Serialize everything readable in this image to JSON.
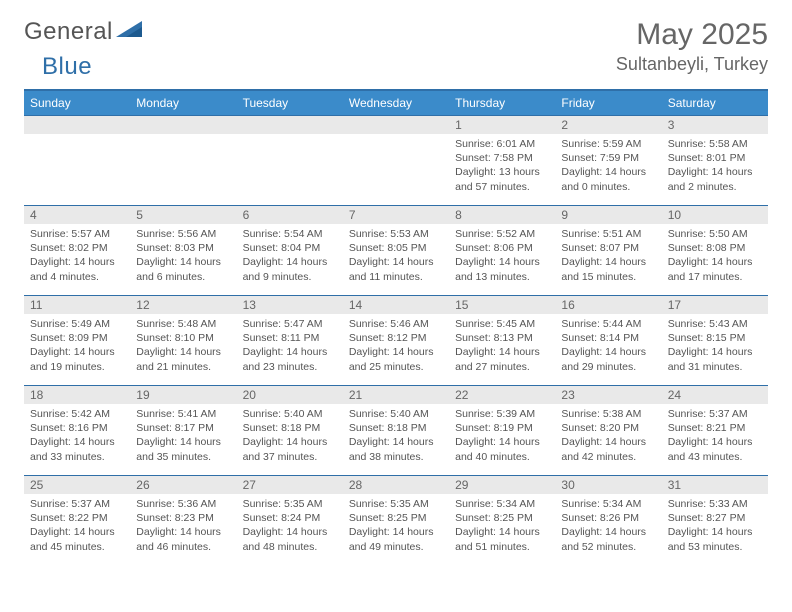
{
  "brand": {
    "text1": "General",
    "text2": "Blue"
  },
  "title": "May 2025",
  "location": "Sultanbeyli, Turkey",
  "colors": {
    "header_bg": "#3b8bca",
    "rule": "#2f6fa8",
    "daynum_bg": "#e9e9e9",
    "text": "#555"
  },
  "weekdays": [
    "Sunday",
    "Monday",
    "Tuesday",
    "Wednesday",
    "Thursday",
    "Friday",
    "Saturday"
  ],
  "weeks": [
    [
      null,
      null,
      null,
      null,
      {
        "n": "1",
        "sr": "6:01 AM",
        "ss": "7:58 PM",
        "dl": "13 hours and 57 minutes."
      },
      {
        "n": "2",
        "sr": "5:59 AM",
        "ss": "7:59 PM",
        "dl": "14 hours and 0 minutes."
      },
      {
        "n": "3",
        "sr": "5:58 AM",
        "ss": "8:01 PM",
        "dl": "14 hours and 2 minutes."
      }
    ],
    [
      {
        "n": "4",
        "sr": "5:57 AM",
        "ss": "8:02 PM",
        "dl": "14 hours and 4 minutes."
      },
      {
        "n": "5",
        "sr": "5:56 AM",
        "ss": "8:03 PM",
        "dl": "14 hours and 6 minutes."
      },
      {
        "n": "6",
        "sr": "5:54 AM",
        "ss": "8:04 PM",
        "dl": "14 hours and 9 minutes."
      },
      {
        "n": "7",
        "sr": "5:53 AM",
        "ss": "8:05 PM",
        "dl": "14 hours and 11 minutes."
      },
      {
        "n": "8",
        "sr": "5:52 AM",
        "ss": "8:06 PM",
        "dl": "14 hours and 13 minutes."
      },
      {
        "n": "9",
        "sr": "5:51 AM",
        "ss": "8:07 PM",
        "dl": "14 hours and 15 minutes."
      },
      {
        "n": "10",
        "sr": "5:50 AM",
        "ss": "8:08 PM",
        "dl": "14 hours and 17 minutes."
      }
    ],
    [
      {
        "n": "11",
        "sr": "5:49 AM",
        "ss": "8:09 PM",
        "dl": "14 hours and 19 minutes."
      },
      {
        "n": "12",
        "sr": "5:48 AM",
        "ss": "8:10 PM",
        "dl": "14 hours and 21 minutes."
      },
      {
        "n": "13",
        "sr": "5:47 AM",
        "ss": "8:11 PM",
        "dl": "14 hours and 23 minutes."
      },
      {
        "n": "14",
        "sr": "5:46 AM",
        "ss": "8:12 PM",
        "dl": "14 hours and 25 minutes."
      },
      {
        "n": "15",
        "sr": "5:45 AM",
        "ss": "8:13 PM",
        "dl": "14 hours and 27 minutes."
      },
      {
        "n": "16",
        "sr": "5:44 AM",
        "ss": "8:14 PM",
        "dl": "14 hours and 29 minutes."
      },
      {
        "n": "17",
        "sr": "5:43 AM",
        "ss": "8:15 PM",
        "dl": "14 hours and 31 minutes."
      }
    ],
    [
      {
        "n": "18",
        "sr": "5:42 AM",
        "ss": "8:16 PM",
        "dl": "14 hours and 33 minutes."
      },
      {
        "n": "19",
        "sr": "5:41 AM",
        "ss": "8:17 PM",
        "dl": "14 hours and 35 minutes."
      },
      {
        "n": "20",
        "sr": "5:40 AM",
        "ss": "8:18 PM",
        "dl": "14 hours and 37 minutes."
      },
      {
        "n": "21",
        "sr": "5:40 AM",
        "ss": "8:18 PM",
        "dl": "14 hours and 38 minutes."
      },
      {
        "n": "22",
        "sr": "5:39 AM",
        "ss": "8:19 PM",
        "dl": "14 hours and 40 minutes."
      },
      {
        "n": "23",
        "sr": "5:38 AM",
        "ss": "8:20 PM",
        "dl": "14 hours and 42 minutes."
      },
      {
        "n": "24",
        "sr": "5:37 AM",
        "ss": "8:21 PM",
        "dl": "14 hours and 43 minutes."
      }
    ],
    [
      {
        "n": "25",
        "sr": "5:37 AM",
        "ss": "8:22 PM",
        "dl": "14 hours and 45 minutes."
      },
      {
        "n": "26",
        "sr": "5:36 AM",
        "ss": "8:23 PM",
        "dl": "14 hours and 46 minutes."
      },
      {
        "n": "27",
        "sr": "5:35 AM",
        "ss": "8:24 PM",
        "dl": "14 hours and 48 minutes."
      },
      {
        "n": "28",
        "sr": "5:35 AM",
        "ss": "8:25 PM",
        "dl": "14 hours and 49 minutes."
      },
      {
        "n": "29",
        "sr": "5:34 AM",
        "ss": "8:25 PM",
        "dl": "14 hours and 51 minutes."
      },
      {
        "n": "30",
        "sr": "5:34 AM",
        "ss": "8:26 PM",
        "dl": "14 hours and 52 minutes."
      },
      {
        "n": "31",
        "sr": "5:33 AM",
        "ss": "8:27 PM",
        "dl": "14 hours and 53 minutes."
      }
    ]
  ],
  "labels": {
    "sunrise": "Sunrise:",
    "sunset": "Sunset:",
    "daylight": "Daylight:"
  }
}
